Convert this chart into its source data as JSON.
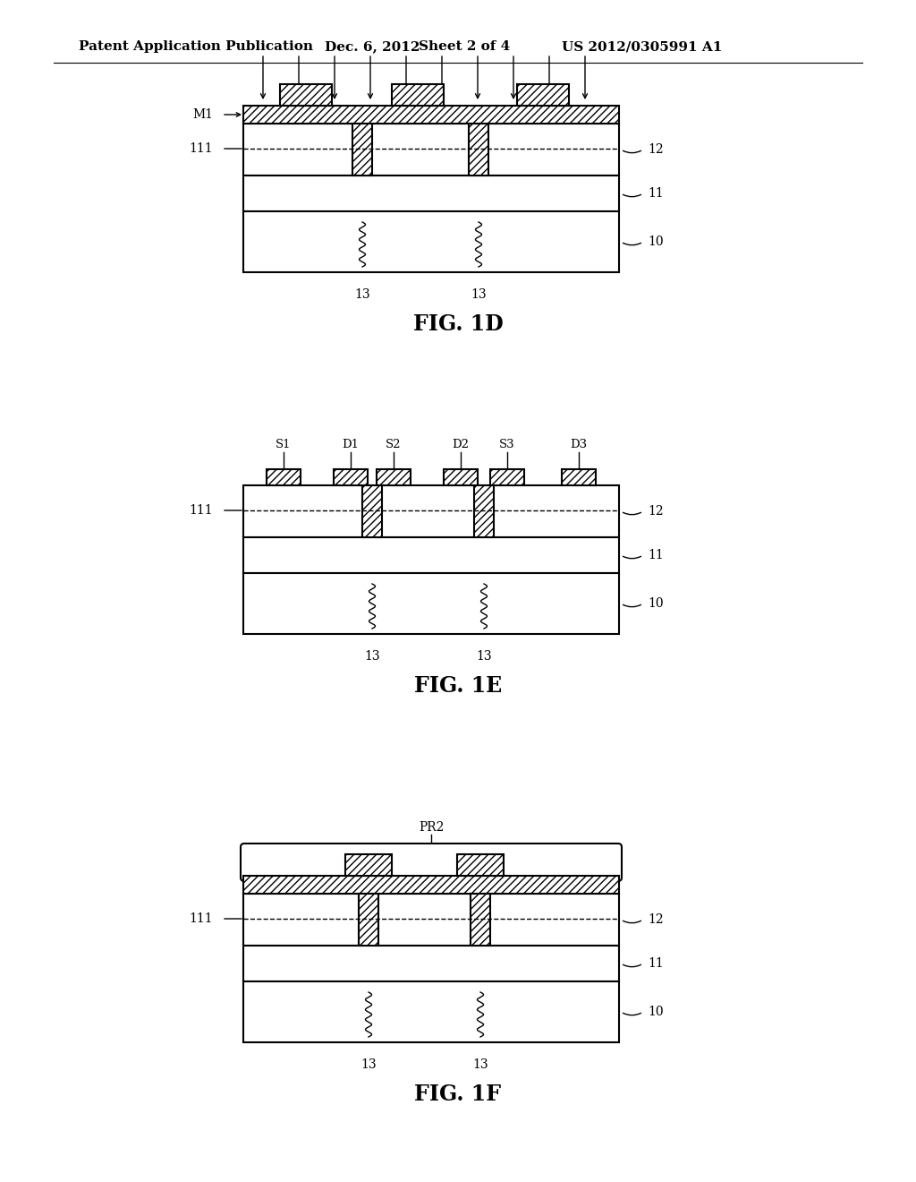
{
  "bg_color": "#ffffff",
  "header_text": "Patent Application Publication",
  "header_date": "Dec. 6, 2012",
  "header_sheet": "Sheet 2 of 4",
  "header_patent": "US 2012/0305991 A1",
  "fig_labels": [
    "FIG. 1D",
    "FIG. 1E",
    "FIG. 1F"
  ]
}
